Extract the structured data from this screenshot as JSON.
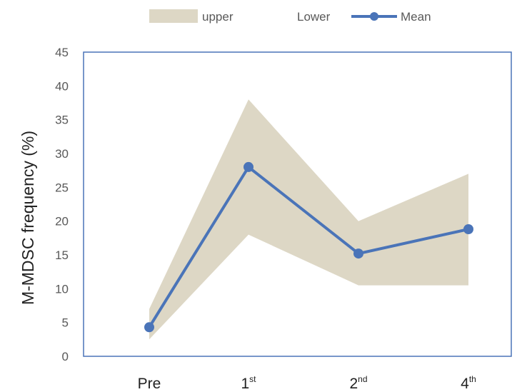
{
  "chart_data": {
    "type": "area",
    "ylabel": "M-MDSC frequency (%)",
    "xlabel": "",
    "ylim": [
      0,
      45
    ],
    "yticks": [
      0,
      5,
      10,
      15,
      20,
      25,
      30,
      35,
      40,
      45
    ],
    "categories": [
      "Pre",
      "1st",
      "2nd",
      "4th"
    ],
    "category_labels": [
      {
        "base": "Pre",
        "sup": ""
      },
      {
        "base": "1",
        "sup": "st"
      },
      {
        "base": "2",
        "sup": "nd"
      },
      {
        "base": "4",
        "sup": "th"
      }
    ],
    "series": [
      {
        "name": "upper",
        "values": [
          7,
          38,
          20,
          27
        ]
      },
      {
        "name": "Lower",
        "values": [
          2.5,
          18,
          10.5,
          10.5
        ]
      },
      {
        "name": "Mean",
        "values": [
          4.3,
          28,
          15.2,
          18.8
        ]
      }
    ],
    "legend": [
      "upper",
      "Lower",
      "Mean"
    ],
    "legend_position": "top",
    "grid": false,
    "colors": {
      "band": "#ddd7c5",
      "mean": "#4a74b8",
      "plot_border": "#4a74b8"
    }
  }
}
